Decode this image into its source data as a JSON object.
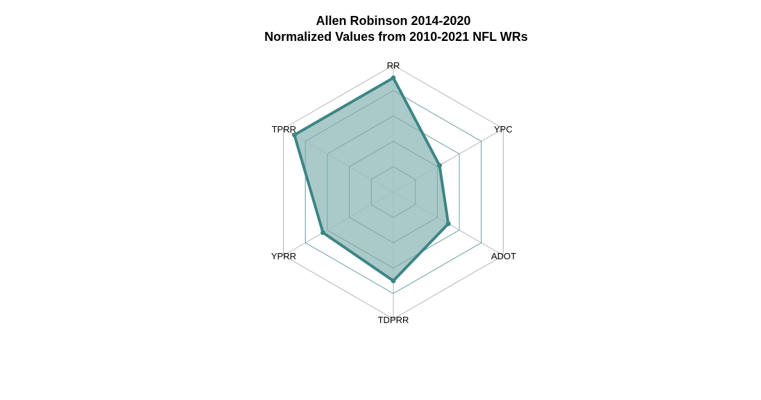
{
  "chart_data": {
    "type": "radar",
    "title": "Allen Robinson 2014-2020",
    "subtitle": "Normalized Values from 2010-2021 NFL WRs",
    "axes": [
      "RR",
      "YPC",
      "ADOT",
      "TDPRR",
      "YPRR",
      "TPRR"
    ],
    "range": [
      0,
      1
    ],
    "grid_levels": 5,
    "series": [
      {
        "values": [
          0.9,
          0.42,
          0.5,
          0.7,
          0.64,
          0.9
        ]
      }
    ],
    "colors": {
      "series_line": "#3d8585",
      "series_fill": "#9bc0c0",
      "grid_outer": "#b5b5b5",
      "grid_inner": "#7fa9a9"
    }
  }
}
